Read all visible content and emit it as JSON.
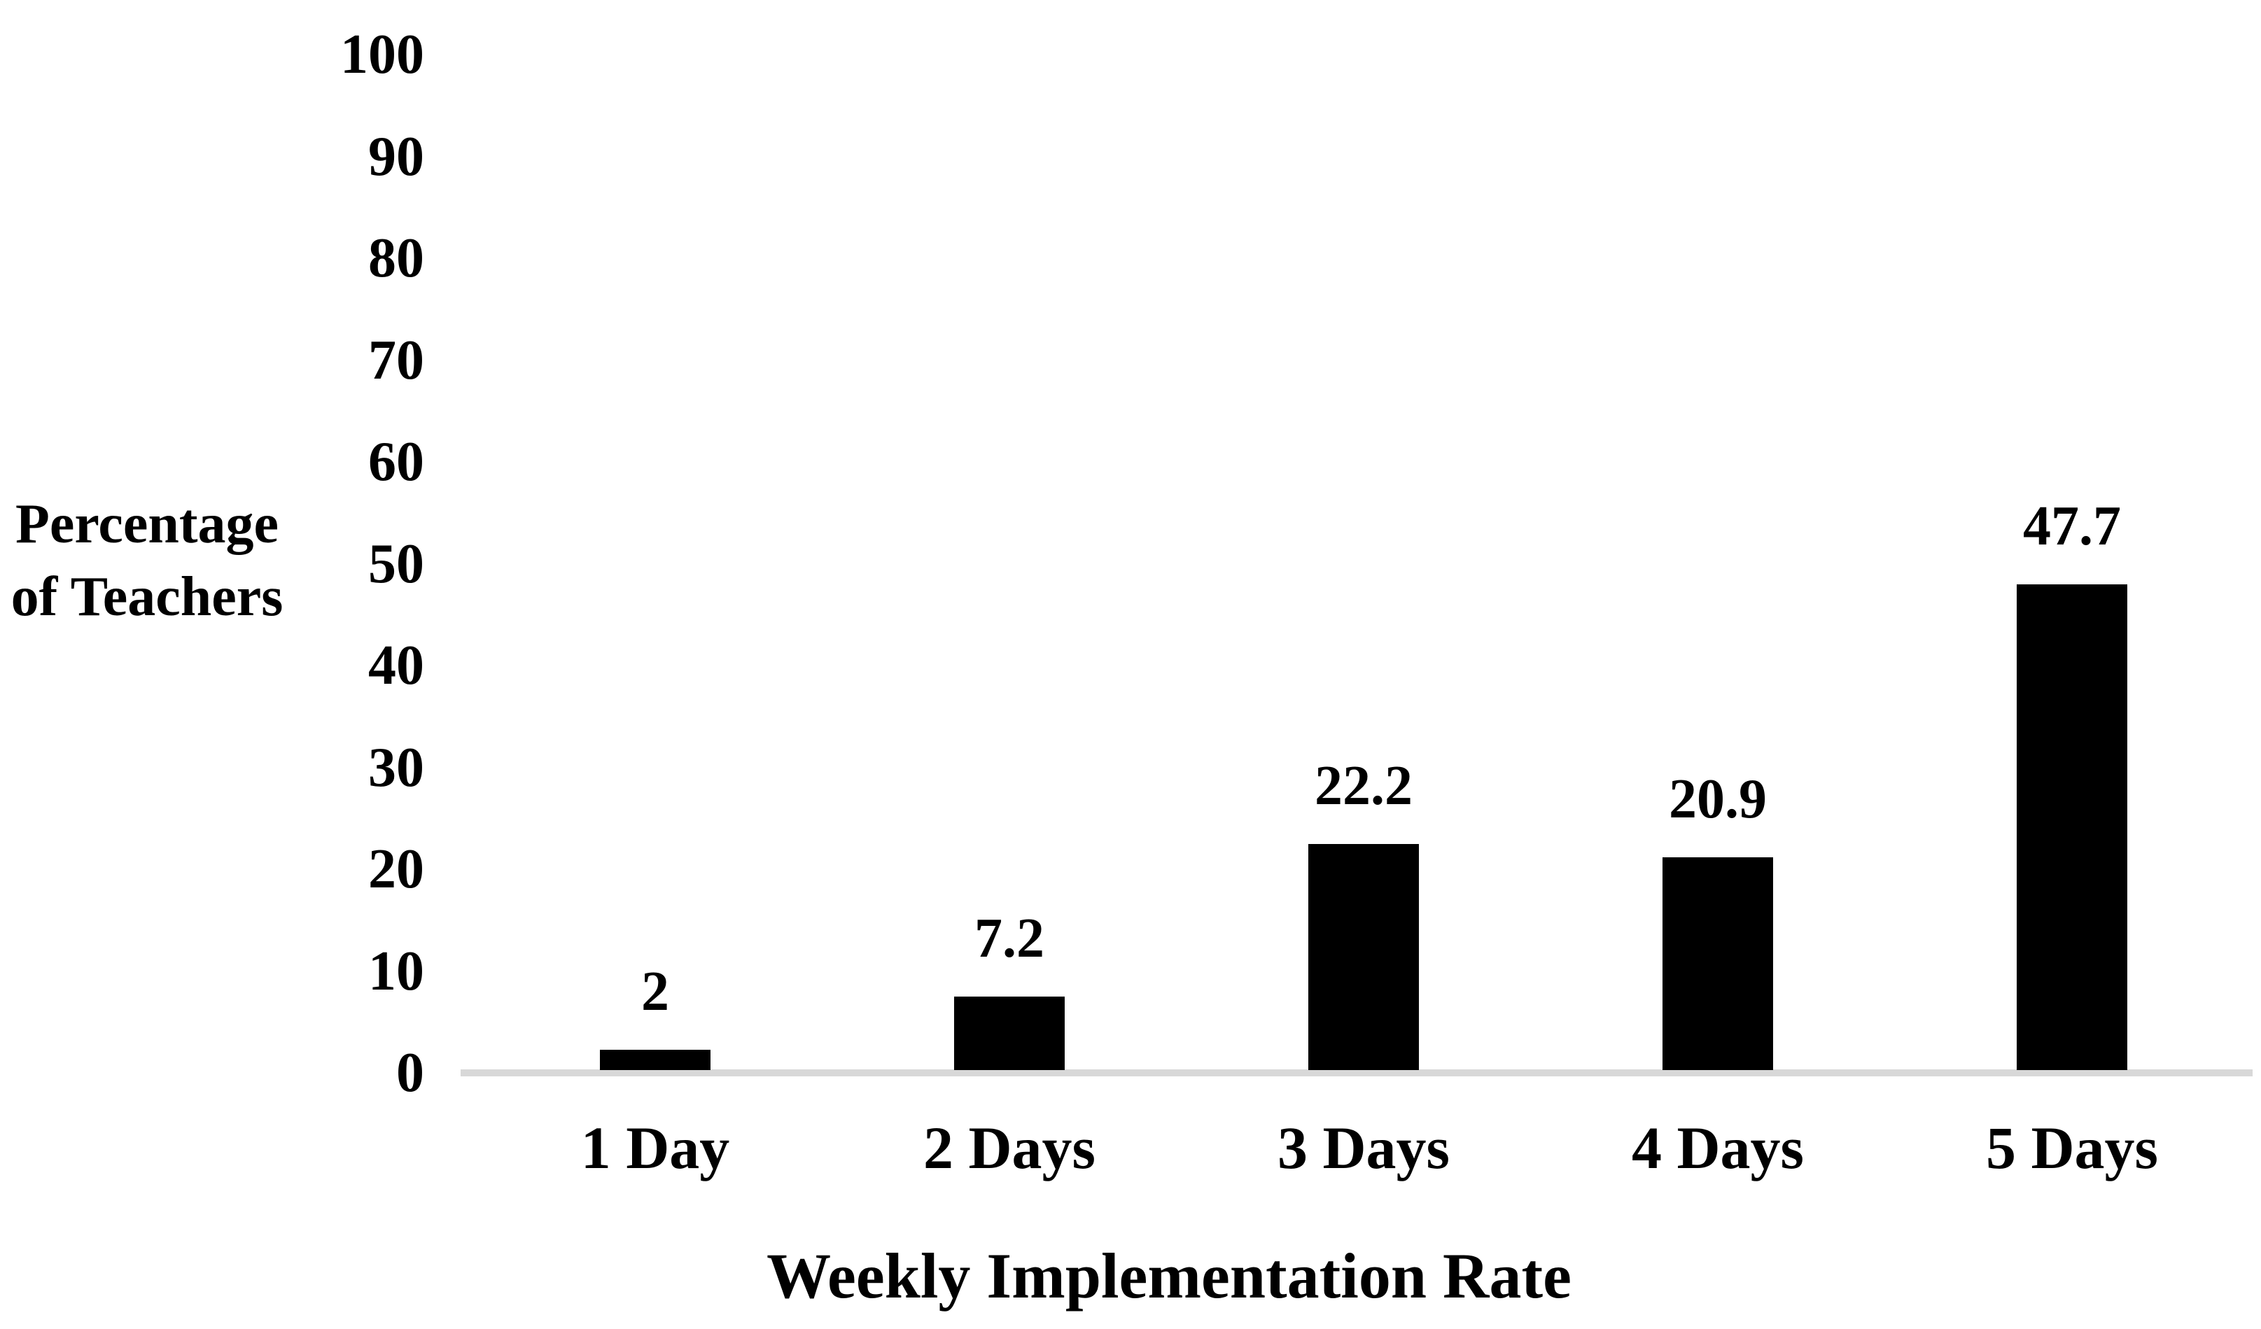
{
  "chart_data": {
    "type": "bar",
    "title": "",
    "categories": [
      "1 Day",
      "2 Days",
      "3 Days",
      "4 Days",
      "5 Days"
    ],
    "values": [
      2,
      7.2,
      22.2,
      20.9,
      47.7
    ],
    "value_labels": [
      "2",
      "7.2",
      "22.2",
      "20.9",
      "47.7"
    ],
    "xlabel": "Weekly Implementation Rate",
    "ylabel": "Percentage of Teachers",
    "ylabel_lines": [
      "Percentage",
      "of Teachers"
    ],
    "yticks": [
      0,
      10,
      20,
      30,
      40,
      50,
      60,
      70,
      80,
      90,
      100
    ],
    "ylim": [
      0,
      100
    ],
    "grid": "off",
    "legend": "none",
    "bar_color": "#000000",
    "axis_line_color": "#d8d8d8",
    "text_color": "#000000",
    "background_color": "#ffffff"
  }
}
